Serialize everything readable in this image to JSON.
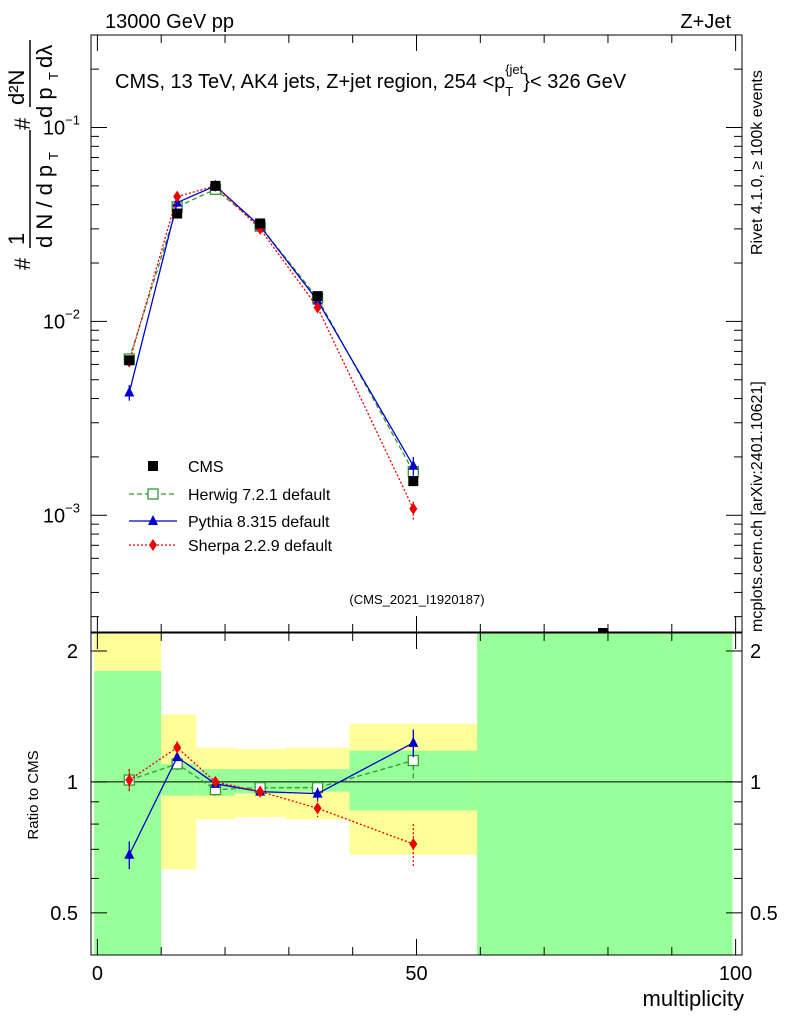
{
  "header": {
    "left": "13000 GeV pp",
    "right": "Z+Jet"
  },
  "side_labels": {
    "rivet": "Rivet 4.1.0, ≥ 100k events",
    "mcplots": "mcplots.cern.ch [arXiv:2401.10621]"
  },
  "chart_data": [
    {
      "type": "scatter",
      "panel": "main",
      "title": "CMS, 13 TeV, AK4 jets, Z+jet region, 254 <p_T^{jet}< 326 GeV",
      "ylabel": "1/dN/dp_T d²N/dp_T dλ",
      "yscale": "log",
      "ylim": [
        0.00025,
        0.3
      ],
      "xlim": [
        -1,
        101
      ],
      "yticks": [
        0.001,
        0.01,
        0.1
      ],
      "ytick_labels": [
        {
          "base": "10",
          "exp": "−3"
        },
        {
          "base": "10",
          "exp": "−2"
        },
        {
          "base": "10",
          "exp": "−1"
        }
      ],
      "watermark": "(CMS_2021_I1920187)",
      "x": [
        5,
        12.5,
        18.5,
        25.5,
        34.5,
        49.5
      ],
      "series": [
        {
          "name": "CMS",
          "color": "#000000",
          "marker": "square",
          "values": [
            0.0063,
            0.036,
            0.05,
            0.032,
            0.0135,
            0.0015
          ]
        },
        {
          "name": "Herwig 7.2.1 default",
          "color": "#339933",
          "marker": "open-square",
          "dash": "5,3",
          "values": [
            0.0064,
            0.039,
            0.048,
            0.031,
            0.0132,
            0.00168
          ]
        },
        {
          "name": "Pythia 8.315 default",
          "color": "#0000cc",
          "marker": "triangle",
          "dash": "",
          "values": [
            0.0043,
            0.041,
            0.05,
            0.031,
            0.0128,
            0.0018
          ],
          "err_up": [
            0.0047,
            0.043,
            0.052,
            0.032,
            0.0132,
            0.002
          ],
          "err_down": [
            0.0039,
            0.039,
            0.048,
            0.03,
            0.0124,
            0.0016
          ]
        },
        {
          "name": "Sherpa 2.2.9 default",
          "color": "#ee0000",
          "marker": "diamond",
          "dash": "2,2",
          "values": [
            0.0062,
            0.044,
            0.05,
            0.03,
            0.0118,
            0.00108
          ]
        }
      ]
    },
    {
      "type": "scatter",
      "panel": "ratio",
      "ylabel": "Ratio to CMS",
      "xlabel": "multiplicity",
      "ylim": [
        0.4,
        2.2
      ],
      "xlim": [
        -1,
        101
      ],
      "yticks": [
        0.5,
        1,
        2
      ],
      "xticks": [
        0,
        50,
        100
      ],
      "bands": [
        {
          "x0": -0.5,
          "x1": 10,
          "green": [
            0.4,
            1.8
          ],
          "yellow": [
            0.4,
            2.2
          ]
        },
        {
          "x0": 10,
          "x1": 15.5,
          "green": [
            0.93,
            1.1
          ],
          "yellow": [
            0.63,
            1.43
          ]
        },
        {
          "x0": 15.5,
          "x1": 21.5,
          "green": [
            0.93,
            1.07
          ],
          "yellow": [
            0.82,
            1.2
          ]
        },
        {
          "x0": 21.5,
          "x1": 29.5,
          "green": [
            0.94,
            1.07
          ],
          "yellow": [
            0.83,
            1.19
          ]
        },
        {
          "x0": 29.5,
          "x1": 39.5,
          "green": [
            0.95,
            1.07
          ],
          "yellow": [
            0.82,
            1.2
          ]
        },
        {
          "x0": 39.5,
          "x1": 59.5,
          "green": [
            0.86,
            1.18
          ],
          "yellow": [
            0.68,
            1.36
          ]
        },
        {
          "x0": 59.5,
          "x1": 99.5,
          "green": [
            0.4,
            2.2
          ],
          "yellow": [
            0.4,
            2.2
          ]
        }
      ],
      "x": [
        5,
        12.5,
        18.5,
        25.5,
        34.5,
        49.5
      ],
      "series": [
        {
          "name": "Herwig 7.2.1 default",
          "values": [
            1.01,
            1.1,
            0.96,
            0.97,
            0.97,
            1.12
          ],
          "err": [
            0.06,
            0.04,
            0.03,
            0.03,
            0.03,
            0.12
          ]
        },
        {
          "name": "Pythia 8.315 default",
          "values": [
            0.68,
            1.14,
            0.99,
            0.95,
            0.94,
            1.23
          ],
          "err": [
            0.05,
            0.02,
            0.02,
            0.02,
            0.03,
            0.09
          ]
        },
        {
          "name": "Sherpa 2.2.9 default",
          "values": [
            1.01,
            1.2,
            1.0,
            0.95,
            0.87,
            0.72
          ],
          "err": [
            0.06,
            0.04,
            0.02,
            0.02,
            0.04,
            0.08
          ]
        }
      ]
    }
  ]
}
